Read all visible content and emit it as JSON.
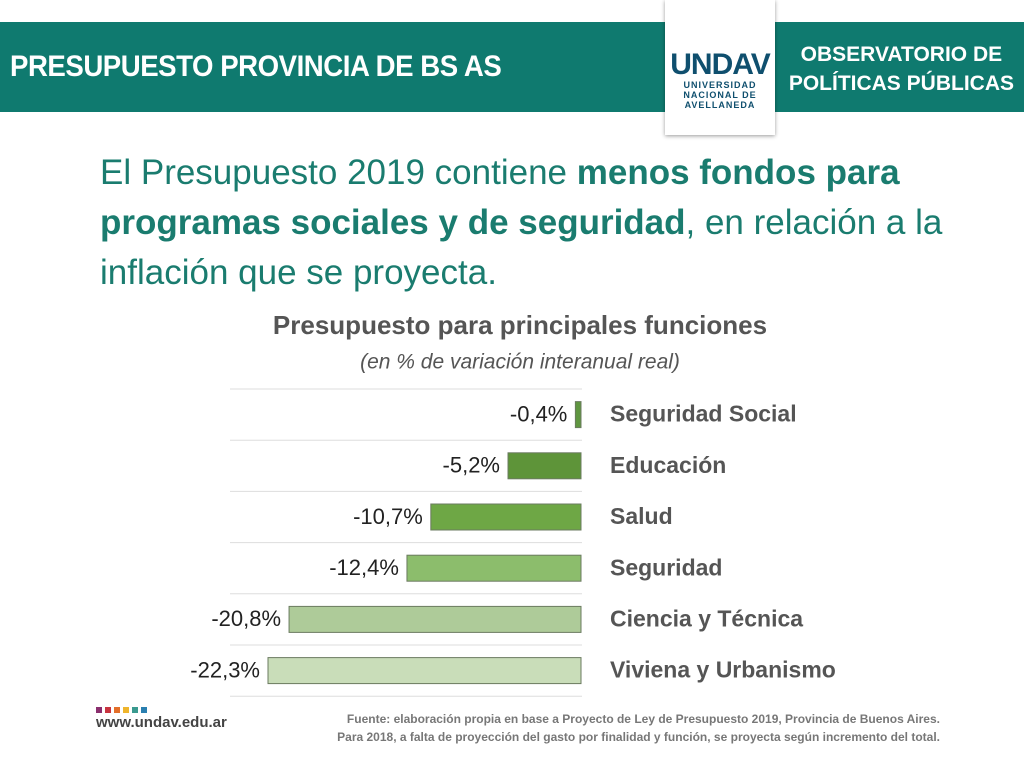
{
  "header": {
    "title": "PRESUPUESTO PROVINCIA DE BS AS",
    "right": [
      "OBSERVATORIO DE",
      "POLÍTICAS PÚBLICAS"
    ],
    "logo": {
      "mark": "UNDAV",
      "lines": [
        "UNIVERSIDAD",
        "NACIONAL DE",
        "AVELLANEDA"
      ]
    }
  },
  "headline": [
    {
      "text": "El Presupuesto 2019 contiene ",
      "bold": false
    },
    {
      "text": "menos fondos para programas sociales y de seguridad",
      "bold": true
    },
    {
      "text": ", en relación a la inflación que se proyecta.",
      "bold": false
    }
  ],
  "chart_data": {
    "type": "bar",
    "orientation": "horizontal",
    "title": "Presupuesto para principales funciones",
    "subtitle": "(en % de variación interanual real)",
    "categories": [
      "Seguridad Social",
      "Educación",
      "Salud",
      "Seguridad",
      "Ciencia y Técnica",
      "Viviena y Urbanismo"
    ],
    "values": [
      -0.4,
      -5.2,
      -10.7,
      -12.4,
      -20.8,
      -22.3
    ],
    "value_labels": [
      "-0,4%",
      "-5,2%",
      "-10,7%",
      "-12,4%",
      "-20,8%",
      "-22,3%"
    ],
    "colors": [
      "#5f9640",
      "#5e9439",
      "#6ea745",
      "#8cbd6c",
      "#aecb99",
      "#c9ddb9"
    ],
    "grid": true
  },
  "footer": {
    "url": "www.undav.edu.ar",
    "source": [
      "Fuente: elaboración propia en base a Proyecto de Ley de Presupuesto 2019, Provincia de Buenos Aires.",
      "Para 2018, a falta de proyección del gasto por finalidad y función, se proyecta según incremento del total."
    ]
  }
}
